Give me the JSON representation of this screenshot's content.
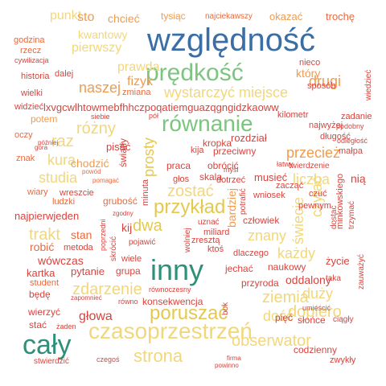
{
  "palette": {
    "blue": "#3a6ea5",
    "teal": "#2f8f7a",
    "green": "#7cc57f",
    "lightgreen": "#a6d98b",
    "yellow": "#e5c84e",
    "lightyellow": "#f2d77a",
    "orange": "#f09b4e",
    "darkorange": "#e86a3f",
    "red": "#d7443e",
    "darkred": "#b63b2e"
  },
  "words": [
    {
      "text": "względność",
      "color": "#3a6ea5"
    },
    {
      "text": "prędkość",
      "color": "#7cc57f"
    },
    {
      "text": "równanie",
      "color": "#7cc57f"
    },
    {
      "text": "inny",
      "color": "#2f8f7a"
    },
    {
      "text": "cały",
      "color": "#2f8f7a"
    },
    {
      "text": "czasoprzestrzeń",
      "color": "#f2d77a"
    },
    {
      "text": "strona",
      "color": "#f2d77a"
    },
    {
      "text": "poruszać",
      "color": "#e5c84e"
    },
    {
      "text": "przykład",
      "color": "#e5c84e"
    },
    {
      "text": "prosty",
      "color": "#e5c84e"
    },
    {
      "text": "zostać",
      "color": "#f2d77a"
    },
    {
      "text": "zdarzenie",
      "color": "#f2d77a"
    },
    {
      "text": "trakt",
      "color": "#f2d77a"
    },
    {
      "text": "kura",
      "color": "#f2d77a"
    },
    {
      "text": "raz",
      "color": "#f2d77a"
    },
    {
      "text": "różny",
      "color": "#f2d77a"
    },
    {
      "text": "studia",
      "color": "#f2d77a"
    },
    {
      "text": "wystarczyć miejsce",
      "color": "#f2d77a"
    },
    {
      "text": "drugi",
      "color": "#f09b4e"
    },
    {
      "text": "dopiero",
      "color": "#f2d77a"
    },
    {
      "text": "ziemia",
      "color": "#f2d77a"
    },
    {
      "text": "świecie",
      "color": "#f2d77a"
    },
    {
      "text": "czytać",
      "color": "#f2d77a"
    },
    {
      "text": "liczba",
      "color": "#f2d77a"
    },
    {
      "text": "znany",
      "color": "#f2d77a"
    },
    {
      "text": "każdy",
      "color": "#f2d77a"
    },
    {
      "text": "obserwator",
      "color": "#f2d77a"
    },
    {
      "text": "dość",
      "color": "#f2d77a"
    },
    {
      "text": "duży",
      "color": "#f2d77a"
    },
    {
      "text": "przecież",
      "color": "#f09b4e"
    },
    {
      "text": "naszej",
      "color": "#f09b4e"
    },
    {
      "text": "fizyk",
      "color": "#f09b4e"
    },
    {
      "text": "prawda",
      "color": "#f2d77a"
    },
    {
      "text": "pierwszy",
      "color": "#f2d77a"
    },
    {
      "text": "kwantowy",
      "color": "#f2d77a"
    },
    {
      "text": "punkt",
      "color": "#f2d77a"
    },
    {
      "text": "sto",
      "color": "#f09b4e"
    },
    {
      "text": "chcieć",
      "color": "#f09b4e"
    },
    {
      "text": "tysiąc",
      "color": "#f09b4e"
    },
    {
      "text": "najciekawszy",
      "color": "#e86a3f"
    },
    {
      "text": "okazać",
      "color": "#f09b4e"
    },
    {
      "text": "trochę",
      "color": "#e86a3f"
    },
    {
      "text": "godzina",
      "color": "#e86a3f"
    },
    {
      "text": "rzecz",
      "color": "#e86a3f"
    },
    {
      "text": "cywilizacja",
      "color": "#d7443e"
    },
    {
      "text": "historia",
      "color": "#d7443e"
    },
    {
      "text": "dalej",
      "color": "#d7443e"
    },
    {
      "text": "zmiana",
      "color": "#e86a3f"
    },
    {
      "text": "wielki",
      "color": "#d7443e"
    },
    {
      "text": "widzieć",
      "color": "#d7443e"
    },
    {
      "text": "potem",
      "color": "#f09b4e"
    },
    {
      "text": "oczy",
      "color": "#e86a3f"
    },
    {
      "text": "znak",
      "color": "#e86a3f"
    },
    {
      "text": "później",
      "color": "#d7443e"
    },
    {
      "text": "góra",
      "color": "#d7443e"
    },
    {
      "text": "wiary",
      "color": "#e86a3f"
    },
    {
      "text": "ludzki",
      "color": "#e86a3f"
    },
    {
      "text": "wreszcie",
      "color": "#d7443e"
    },
    {
      "text": "pisać",
      "color": "#d7443e"
    },
    {
      "text": "chodzić",
      "color": "#f09b4e"
    },
    {
      "text": "powód",
      "color": "#e86a3f"
    },
    {
      "text": "pomagać",
      "color": "#e86a3f"
    },
    {
      "text": "grubość",
      "color": "#e86a3f"
    },
    {
      "text": "najpierwjeden",
      "color": "#d7443e"
    },
    {
      "text": "stan",
      "color": "#e86a3f"
    },
    {
      "text": "robić",
      "color": "#e86a3f"
    },
    {
      "text": "metoda",
      "color": "#d7443e"
    },
    {
      "text": "wówczas",
      "color": "#d7443e"
    },
    {
      "text": "kartka",
      "color": "#d7443e"
    },
    {
      "text": "pytanie",
      "color": "#d7443e"
    },
    {
      "text": "grupa",
      "color": "#d7443e"
    },
    {
      "text": "student",
      "color": "#e86a3f"
    },
    {
      "text": "będę",
      "color": "#d7443e"
    },
    {
      "text": "zapomnieć",
      "color": "#d7443e"
    },
    {
      "text": "równo",
      "color": "#d7443e"
    },
    {
      "text": "wierzyć",
      "color": "#d7443e"
    },
    {
      "text": "głowa",
      "color": "#d7443e"
    },
    {
      "text": "stać",
      "color": "#d7443e"
    },
    {
      "text": "żaden",
      "color": "#d7443e"
    },
    {
      "text": "stwierdzić",
      "color": "#d7443e"
    },
    {
      "text": "czegoś",
      "color": "#d7443e"
    },
    {
      "text": "firma",
      "color": "#d7443e"
    },
    {
      "text": "powinno",
      "color": "#d7443e"
    },
    {
      "text": "zwykły",
      "color": "#d7443e"
    },
    {
      "text": "codzienny",
      "color": "#d7443e"
    },
    {
      "text": "umieścić",
      "color": "#d7443e"
    },
    {
      "text": "słońce",
      "color": "#d7443e"
    },
    {
      "text": "ciągły",
      "color": "#d7443e"
    },
    {
      "text": "pięć",
      "color": "#d7443e"
    },
    {
      "text": "bok",
      "color": "#d7443e"
    },
    {
      "text": "konsekwencja",
      "color": "#d7443e"
    },
    {
      "text": "równoczesny",
      "color": "#d7443e"
    },
    {
      "text": "przyroda",
      "color": "#d7443e"
    },
    {
      "text": "oddalony",
      "color": "#d7443e"
    },
    {
      "text": "taka",
      "color": "#d7443e"
    },
    {
      "text": "naukowy",
      "color": "#d7443e"
    },
    {
      "text": "jechać",
      "color": "#d7443e"
    },
    {
      "text": "dlaczego",
      "color": "#d7443e"
    },
    {
      "text": "życie",
      "color": "#d7443e"
    },
    {
      "text": "zauważyć",
      "color": "#d7443e"
    },
    {
      "text": "trzymać",
      "color": "#d7443e"
    },
    {
      "text": "minkowskiego",
      "color": "#d7443e"
    },
    {
      "text": "dostać",
      "color": "#d7443e"
    },
    {
      "text": "człowiek",
      "color": "#d7443e"
    },
    {
      "text": "pewnym",
      "color": "#d7443e"
    },
    {
      "text": "czuć",
      "color": "#d7443e"
    },
    {
      "text": "wniosek",
      "color": "#d7443e"
    },
    {
      "text": "zacząć",
      "color": "#d7443e"
    },
    {
      "text": "twierdzenie",
      "color": "#d7443e"
    },
    {
      "text": "łatwy",
      "color": "#d7443e"
    },
    {
      "text": "musieć",
      "color": "#d7443e"
    },
    {
      "text": "nią",
      "color": "#d7443e"
    },
    {
      "text": "małpa",
      "color": "#d7443e"
    },
    {
      "text": "długość",
      "color": "#d7443e"
    },
    {
      "text": "odległość",
      "color": "#d7443e"
    },
    {
      "text": "najwyżej",
      "color": "#d7443e"
    },
    {
      "text": "podobny",
      "color": "#d7443e"
    },
    {
      "text": "zadanie",
      "color": "#d7443e"
    },
    {
      "text": "kilometr",
      "color": "#d7443e"
    },
    {
      "text": "lxvgcwlhtowmebfhhczpoqatiemguazqgngidzkaoww",
      "color": "#d7443e"
    },
    {
      "text": "wiedzieć",
      "color": "#d7443e"
    },
    {
      "text": "sposób",
      "color": "#d7443e"
    },
    {
      "text": "nieco",
      "color": "#d7443e"
    },
    {
      "text": "który",
      "color": "#f09b4e"
    },
    {
      "text": "pół",
      "color": "#d7443e"
    },
    {
      "text": "siebie",
      "color": "#d7443e"
    },
    {
      "text": "światły",
      "color": "#d7443e"
    },
    {
      "text": "kropka",
      "color": "#d7443e"
    },
    {
      "text": "rozdział",
      "color": "#d7443e"
    },
    {
      "text": "kija",
      "color": "#d7443e"
    },
    {
      "text": "przeciwny",
      "color": "#d7443e"
    },
    {
      "text": "praca",
      "color": "#d7443e"
    },
    {
      "text": "obrócić",
      "color": "#d7443e"
    },
    {
      "text": "skala",
      "color": "#d7443e"
    },
    {
      "text": "głos",
      "color": "#d7443e"
    },
    {
      "text": "myśl",
      "color": "#d7443e"
    },
    {
      "text": "dotrzeć",
      "color": "#d7443e"
    },
    {
      "text": "minuta",
      "color": "#d7443e"
    },
    {
      "text": "kij",
      "color": "#d7443e"
    },
    {
      "text": "dwa",
      "color": "#e5c84e"
    },
    {
      "text": "bardziej",
      "color": "#f09b4e"
    },
    {
      "text": "potrafić",
      "color": "#d7443e"
    },
    {
      "text": "uznać",
      "color": "#d7443e"
    },
    {
      "text": "wolniej",
      "color": "#d7443e"
    },
    {
      "text": "miliard",
      "color": "#d7443e"
    },
    {
      "text": "zresztą",
      "color": "#d7443e"
    },
    {
      "text": "ktoś",
      "color": "#d7443e"
    },
    {
      "text": "pojawić",
      "color": "#d7443e"
    },
    {
      "text": "skrócić",
      "color": "#d7443e"
    },
    {
      "text": "poprzedni",
      "color": "#d7443e"
    },
    {
      "text": "wiele",
      "color": "#d7443e"
    },
    {
      "text": "zgodny",
      "color": "#d7443e"
    }
  ]
}
